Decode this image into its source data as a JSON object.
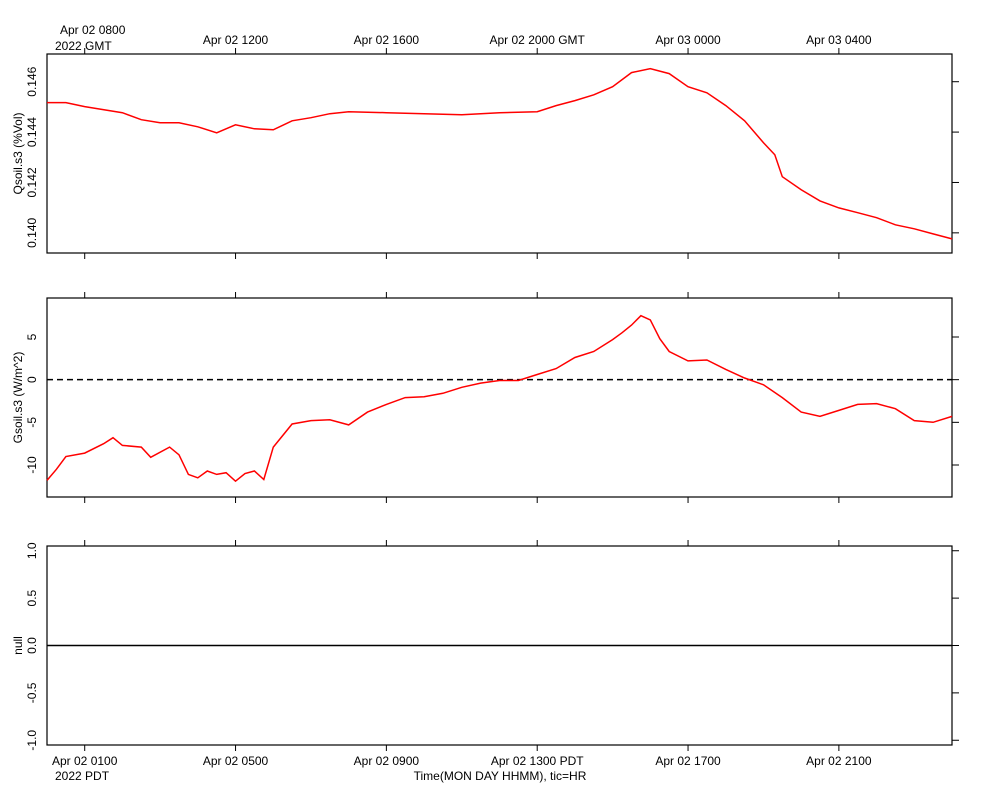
{
  "chart_data": [
    {
      "type": "line",
      "ylabel": "Qsoil.s3 (%Vol)",
      "xlim": [
        0,
        24
      ],
      "ylim": [
        0.1392,
        0.1471
      ],
      "yticks": [
        {
          "value": 0.14,
          "label": "0.140"
        },
        0.142,
        0.144,
        0.146
      ],
      "xticks": [
        {
          "value": 1,
          "label": "Apr 02 0800"
        },
        {
          "value": 5,
          "label": "Apr 02 1200"
        },
        {
          "value": 9,
          "label": "Apr 02 1600"
        },
        {
          "value": 13,
          "label": "Apr 02 2000 GMT"
        },
        {
          "value": 17,
          "label": "Apr 03 0000"
        },
        {
          "value": 21,
          "label": "Apr 03 0400"
        }
      ],
      "xticks_position": "top",
      "x_note": "2022 GMT",
      "x": [
        0,
        0.5,
        1,
        2,
        2.5,
        3,
        3.5,
        4,
        4.5,
        5,
        5.5,
        6,
        6.5,
        7,
        7.5,
        8,
        9,
        10,
        11,
        12,
        13,
        13.5,
        14,
        14.5,
        15,
        15.5,
        16,
        16.5,
        17,
        17.5,
        18,
        18.5,
        19,
        19.3,
        19.5,
        20,
        20.5,
        21,
        21.5,
        22,
        22.5,
        23,
        23.5,
        24
      ],
      "series": [
        {
          "color": "#ff0000",
          "values": [
            0.14517,
            0.14517,
            0.14501,
            0.14477,
            0.14449,
            0.14437,
            0.14437,
            0.14421,
            0.14397,
            0.14429,
            0.14413,
            0.14409,
            0.14445,
            0.14457,
            0.14473,
            0.14481,
            0.14477,
            0.14473,
            0.14469,
            0.14477,
            0.14481,
            0.14505,
            0.14525,
            0.14548,
            0.1458,
            0.14636,
            0.14652,
            0.14632,
            0.1458,
            0.14556,
            0.14505,
            0.14445,
            0.14358,
            0.1431,
            0.14223,
            0.14171,
            0.14127,
            0.14099,
            0.1408,
            0.1406,
            0.14032,
            0.14016,
            0.13996,
            0.13976
          ]
        }
      ]
    },
    {
      "type": "line",
      "ylabel": "Gsoil.s3 (W/m^2)",
      "xlim": [
        0,
        24
      ],
      "ylim": [
        -13.75,
        9.57
      ],
      "yticks": [
        -10,
        -5,
        0,
        5
      ],
      "xticks": [
        1,
        5,
        9,
        13,
        17,
        21
      ],
      "hline": 0,
      "hline_style": "dashed",
      "x": [
        0,
        0.25,
        0.5,
        1,
        1.5,
        1.75,
        2,
        2.5,
        2.75,
        3.25,
        3.5,
        3.75,
        4,
        4.25,
        4.5,
        4.75,
        5,
        5.25,
        5.5,
        5.75,
        6,
        6.5,
        7,
        7.5,
        8,
        8.5,
        9,
        9.5,
        10,
        10.5,
        11,
        11.5,
        12,
        12.5,
        13,
        13.5,
        14,
        14.5,
        15,
        15.25,
        15.5,
        15.75,
        16,
        16.25,
        16.5,
        17,
        17.5,
        18,
        18.5,
        19,
        19.5,
        20,
        20.5,
        21,
        21.5,
        22,
        22.5,
        23,
        23.5,
        24
      ],
      "series": [
        {
          "color": "#ff0000",
          "values": [
            -11.8,
            -10.5,
            -9.0,
            -8.6,
            -7.5,
            -6.8,
            -7.7,
            -7.9,
            -9.1,
            -7.9,
            -8.8,
            -11.1,
            -11.5,
            -10.7,
            -11.1,
            -10.9,
            -11.9,
            -11.0,
            -10.7,
            -11.7,
            -7.9,
            -5.2,
            -4.8,
            -4.7,
            -5.3,
            -3.8,
            -2.9,
            -2.1,
            -2.0,
            -1.6,
            -0.9,
            -0.4,
            -0.1,
            -0.1,
            0.6,
            1.3,
            2.6,
            3.3,
            4.7,
            5.5,
            6.4,
            7.5,
            7.0,
            4.8,
            3.3,
            2.2,
            2.3,
            1.2,
            0.2,
            -0.6,
            -2.1,
            -3.8,
            -4.3,
            -3.6,
            -2.9,
            -2.8,
            -3.4,
            -4.8,
            -5.0,
            -4.3
          ]
        }
      ]
    },
    {
      "type": "line",
      "ylabel": "null",
      "xlim": [
        0,
        24
      ],
      "ylim": [
        -1.05,
        1.05
      ],
      "yticks": [
        {
          "value": -1,
          "label": "-1.0"
        },
        -0.5,
        {
          "value": 0,
          "label": "0.0"
        },
        0.5,
        {
          "value": 1,
          "label": "1.0"
        }
      ],
      "xticks": [
        {
          "value": 1,
          "label": "Apr 02 0100"
        },
        {
          "value": 5,
          "label": "Apr 02 0500"
        },
        {
          "value": 9,
          "label": "Apr 02 0900"
        },
        {
          "value": 13,
          "label": "Apr 02 1300 PDT"
        },
        {
          "value": 17,
          "label": "Apr 02 1700"
        },
        {
          "value": 21,
          "label": "Apr 02 2100"
        }
      ],
      "xticks_position": "bottom",
      "x_note": "2022 PDT",
      "xlabel": "Time(MON DAY HHMM), tic=HR",
      "hline": 0,
      "hline_style": "solid",
      "x": [],
      "series": []
    }
  ]
}
